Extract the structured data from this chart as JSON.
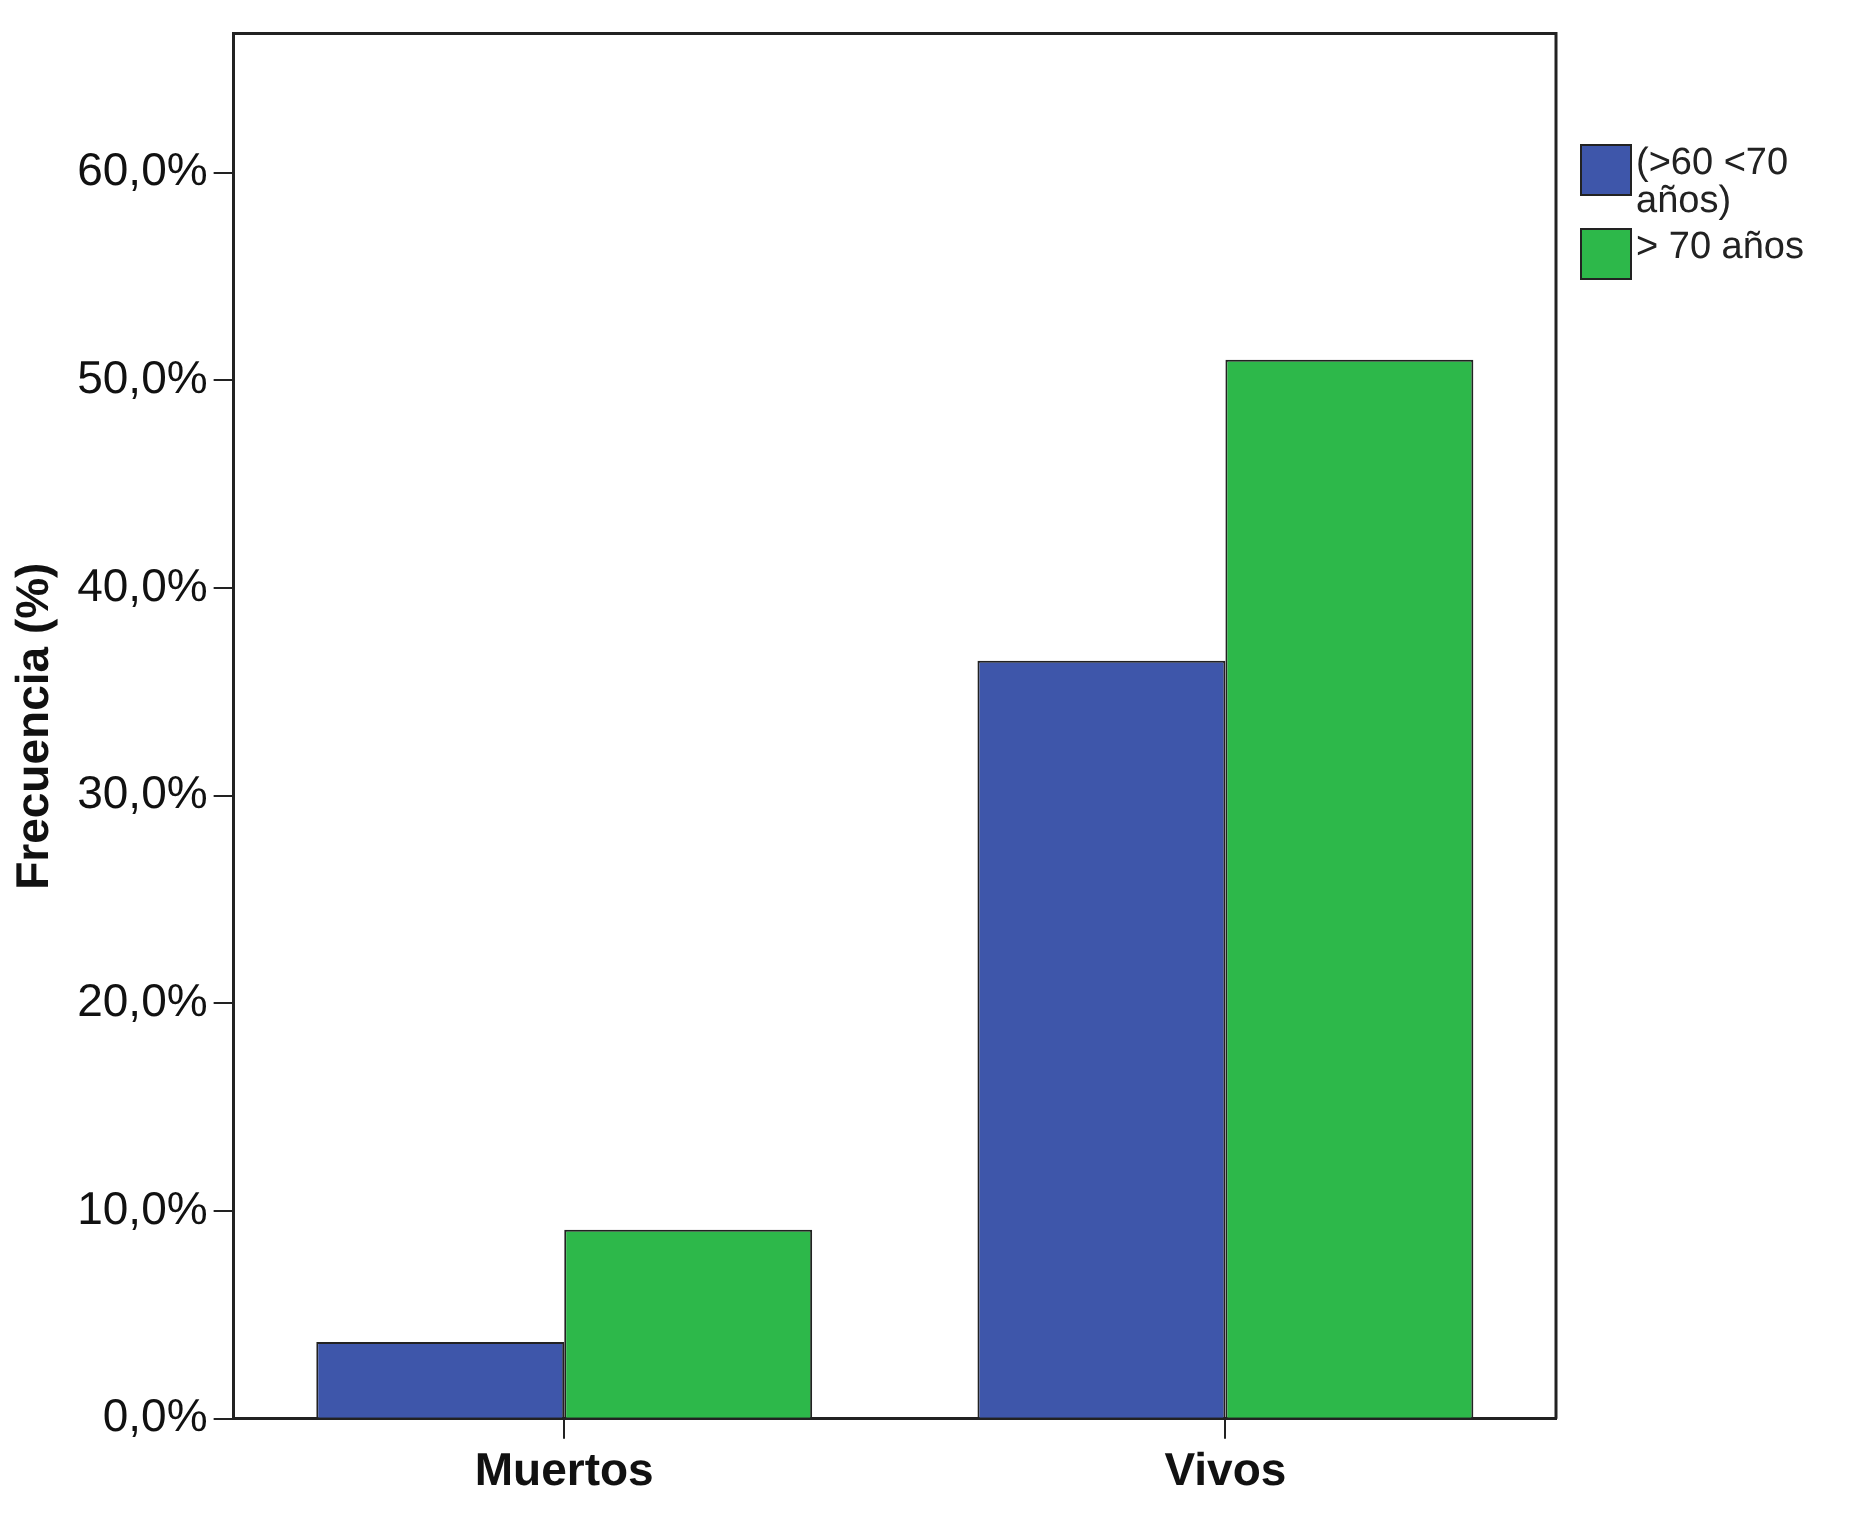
{
  "chart_data": {
    "type": "bar",
    "ylabel": "Frecuencia (%)",
    "categories": [
      "Muertos",
      "Vivos"
    ],
    "series": [
      {
        "name": "(>60 <70 años)",
        "color": "#3e56aa",
        "values": [
          3.7,
          36.5
        ]
      },
      {
        "name": "> 70 años",
        "color": "#2db84a",
        "values": [
          9.1,
          51.0
        ]
      }
    ],
    "ylim": [
      0,
      66.7
    ],
    "yticks": [
      {
        "value": 0,
        "label": "0,0%"
      },
      {
        "value": 10,
        "label": "10,0%"
      },
      {
        "value": 20,
        "label": "20,0%"
      },
      {
        "value": 30,
        "label": "30,0%"
      },
      {
        "value": 40,
        "label": "40,0%"
      },
      {
        "value": 50,
        "label": "50,0%"
      },
      {
        "value": 60,
        "label": "60,0%"
      }
    ],
    "grid": false,
    "legend": "top right"
  }
}
